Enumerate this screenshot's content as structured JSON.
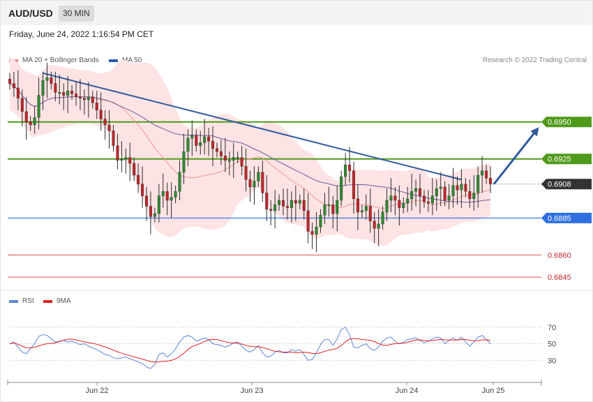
{
  "header": {
    "symbol": "AUD/USD",
    "timeframe": "30 MIN"
  },
  "datetime": "Friday, June 24, 2022 1:16:54 PM CET",
  "legend": [
    {
      "label": "MA 20 + Bollinger Bands",
      "color": "#f08a8a"
    },
    {
      "label": "MA 50",
      "color": "#2e5aa8"
    }
  ],
  "credit": "Research © 2022 Trading Central",
  "rsi_legend": [
    {
      "label": "RSI",
      "color": "#5b86d6"
    },
    {
      "label": "9MA",
      "color": "#e02020"
    }
  ],
  "colors": {
    "up": "#2f8a2f",
    "down": "#c0262b",
    "resistance": "#4f9a1a",
    "support": "#2f6fe0",
    "target": "#e05050",
    "trend": "#2f5a9c"
  },
  "chart_data": [
    {
      "type": "candlestick",
      "title": "AUD/USD 30 MIN",
      "ylim": [
        0.6838,
        0.699
      ],
      "x_ticks": [
        "Jun 22",
        "Jun 23",
        "Jun 24",
        "Jun 25"
      ],
      "levels": [
        {
          "label": "0.6950",
          "value": 0.695,
          "kind": "resistance"
        },
        {
          "label": "0.6925",
          "value": 0.6925,
          "kind": "resistance"
        },
        {
          "label": "0.6908",
          "value": 0.6908,
          "kind": "last"
        },
        {
          "label": "0.6885",
          "value": 0.6885,
          "kind": "support"
        },
        {
          "label": "0.6860",
          "value": 0.686,
          "kind": "target"
        },
        {
          "label": "0.6845",
          "value": 0.6845,
          "kind": "target"
        }
      ],
      "close": [
        0.6976,
        0.6973,
        0.6966,
        0.6957,
        0.695,
        0.6948,
        0.6953,
        0.6968,
        0.6978,
        0.698,
        0.6976,
        0.697,
        0.697,
        0.6968,
        0.6971,
        0.6969,
        0.6967,
        0.6966,
        0.6965,
        0.6967,
        0.6963,
        0.6958,
        0.6952,
        0.6948,
        0.6944,
        0.6934,
        0.6924,
        0.6925,
        0.6926,
        0.6922,
        0.6914,
        0.6908,
        0.69,
        0.6893,
        0.6886,
        0.6888,
        0.69,
        0.6903,
        0.6897,
        0.6899,
        0.6903,
        0.6916,
        0.693,
        0.6939,
        0.6941,
        0.6934,
        0.6936,
        0.694,
        0.6937,
        0.6932,
        0.693,
        0.6927,
        0.6924,
        0.6924,
        0.6926,
        0.6926,
        0.692,
        0.6911,
        0.6906,
        0.691,
        0.6916,
        0.6902,
        0.6891,
        0.689,
        0.6894,
        0.6897,
        0.6893,
        0.6892,
        0.6897,
        0.6895,
        0.6897,
        0.689,
        0.6876,
        0.6874,
        0.6879,
        0.6887,
        0.6894,
        0.6894,
        0.6888,
        0.6897,
        0.6913,
        0.6921,
        0.6917,
        0.6898,
        0.6889,
        0.689,
        0.6893,
        0.6883,
        0.6878,
        0.6881,
        0.6889,
        0.6897,
        0.69,
        0.6897,
        0.6892,
        0.6895,
        0.6898,
        0.6903,
        0.6905,
        0.69,
        0.6896,
        0.6895,
        0.69,
        0.6905,
        0.6906,
        0.6897,
        0.69,
        0.6907,
        0.6904,
        0.6908,
        0.6903,
        0.6898,
        0.6902,
        0.6914,
        0.6917,
        0.6912,
        0.6908
      ],
      "rsi_ylim": [
        10,
        90
      ],
      "rsi_ticks": [
        30,
        50,
        70
      ],
      "rsi": [
        50,
        52,
        46,
        40,
        38,
        44,
        50,
        59,
        61,
        60,
        56,
        52,
        53,
        54,
        52,
        53,
        51,
        49,
        50,
        47,
        45,
        43,
        40,
        37,
        36,
        33,
        32,
        33,
        34,
        32,
        30,
        28,
        26,
        22,
        20,
        25,
        37,
        39,
        34,
        38,
        44,
        52,
        58,
        60,
        58,
        53,
        55,
        57,
        55,
        50,
        49,
        48,
        46,
        48,
        51,
        52,
        47,
        42,
        40,
        43,
        48,
        39,
        34,
        35,
        40,
        42,
        39,
        39,
        43,
        41,
        43,
        37,
        30,
        31,
        39,
        49,
        55,
        55,
        48,
        56,
        67,
        70,
        61,
        46,
        45,
        48,
        50,
        44,
        42,
        46,
        53,
        57,
        58,
        53,
        50,
        52,
        55,
        56,
        57,
        54,
        51,
        53,
        56,
        58,
        57,
        50,
        54,
        57,
        54,
        58,
        52,
        47,
        52,
        58,
        60,
        55,
        50
      ]
    }
  ]
}
